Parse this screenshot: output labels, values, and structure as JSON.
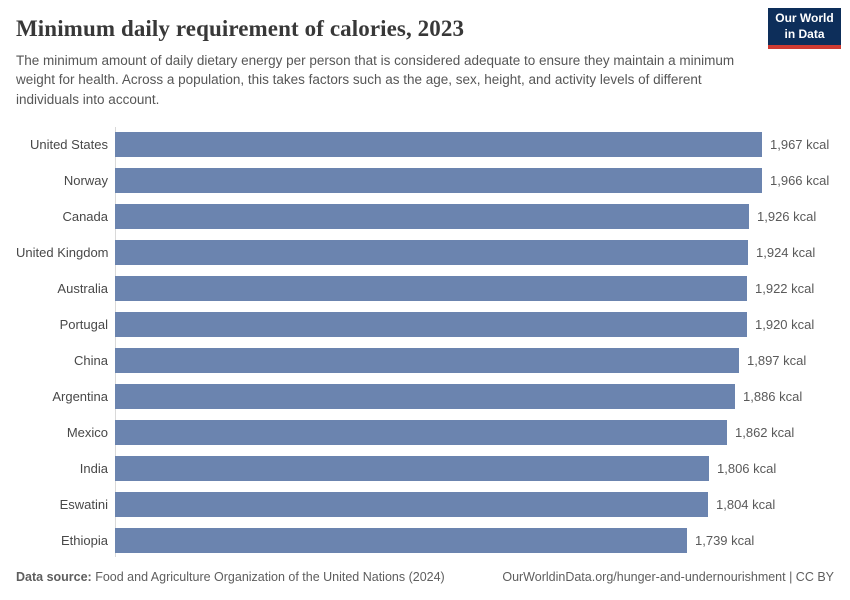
{
  "header": {
    "title": "Minimum daily requirement of calories, 2023",
    "subtitle": "The minimum amount of daily dietary energy per person that is considered adequate to ensure they maintain a minimum weight for health. Across a population, this takes factors such as the age, sex, height, and activity levels of different individuals into account.",
    "logo": {
      "line1": "Our World",
      "line2": "in Data",
      "bg_color": "#0d2e5a",
      "accent_color": "#cf3b32"
    }
  },
  "chart_data": {
    "type": "bar",
    "orientation": "horizontal",
    "title": "Minimum daily requirement of calories, 2023",
    "unit": "kcal",
    "categories": [
      "United States",
      "Norway",
      "Canada",
      "United Kingdom",
      "Australia",
      "Portugal",
      "China",
      "Argentina",
      "Mexico",
      "India",
      "Eswatini",
      "Ethiopia"
    ],
    "values": [
      1967,
      1966,
      1926,
      1924,
      1922,
      1920,
      1897,
      1886,
      1862,
      1806,
      1804,
      1739
    ],
    "value_labels": [
      "1,967 kcal",
      "1,966 kcal",
      "1,926 kcal",
      "1,924 kcal",
      "1,922 kcal",
      "1,920 kcal",
      "1,897 kcal",
      "1,886 kcal",
      "1,862 kcal",
      "1,806 kcal",
      "1,804 kcal",
      "1,739 kcal"
    ],
    "xlim": [
      0,
      2190
    ],
    "grid": false,
    "axis_tick_labels_visible": false,
    "bar_color": "#6b84af",
    "axis_line_color": "#d9d9d9"
  },
  "footer": {
    "datasource_label": "Data source:",
    "datasource_text": " Food and Agriculture Organization of the United Nations (2024)",
    "attribution": "OurWorldinData.org/hunger-and-undernourishment | CC BY"
  }
}
